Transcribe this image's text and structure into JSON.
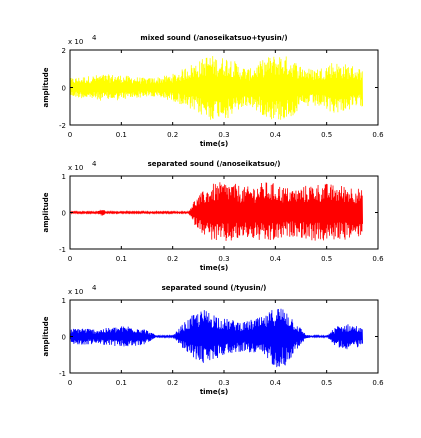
{
  "chart_data": [
    {
      "type": "line",
      "title": "mixed sound (/anoseikatsuo+tyusin/)",
      "xlabel": "time(s)",
      "ylabel": "amplitude",
      "y_multiplier": "x 10",
      "y_exponent": "4",
      "xlim": [
        0,
        0.6
      ],
      "ylim": [
        -2,
        2
      ],
      "xticks": [
        "0",
        "0.1",
        "0.2",
        "0.3",
        "0.4",
        "0.5",
        "0.6"
      ],
      "yticks": [
        "-2",
        "0",
        "2"
      ],
      "series": [
        {
          "color": "#ffff00",
          "x": [
            0,
            0.03,
            0.06,
            0.09,
            0.12,
            0.15,
            0.18,
            0.21,
            0.23,
            0.25,
            0.27,
            0.29,
            0.31,
            0.33,
            0.35,
            0.37,
            0.39,
            0.41,
            0.43,
            0.45,
            0.47,
            0.49,
            0.51,
            0.53,
            0.55,
            0.57
          ],
          "amp": [
            0.25,
            0.3,
            0.35,
            0.35,
            0.3,
            0.25,
            0.3,
            0.4,
            0.6,
            0.7,
            0.9,
            0.8,
            0.85,
            0.6,
            0.5,
            0.7,
            0.85,
            0.9,
            0.8,
            0.6,
            0.5,
            0.55,
            0.7,
            0.65,
            0.6,
            0.5
          ]
        }
      ]
    },
    {
      "type": "line",
      "title": "separated sound (/anoseikatsuo/)",
      "xlabel": "time(s)",
      "ylabel": "amplitude",
      "y_multiplier": "x 10",
      "y_exponent": "4",
      "xlim": [
        0,
        0.6
      ],
      "ylim": [
        -1,
        1
      ],
      "xticks": [
        "0",
        "0.1",
        "0.2",
        "0.3",
        "0.4",
        "0.5",
        "0.6"
      ],
      "yticks": [
        "-1",
        "0",
        "1"
      ],
      "series": [
        {
          "color": "#ff0000",
          "x": [
            0,
            0.05,
            0.06,
            0.065,
            0.07,
            0.1,
            0.2,
            0.23,
            0.24,
            0.26,
            0.28,
            0.3,
            0.32,
            0.34,
            0.36,
            0.38,
            0.4,
            0.42,
            0.44,
            0.46,
            0.48,
            0.5,
            0.52,
            0.54,
            0.56,
            0.57
          ],
          "amp": [
            0.02,
            0.02,
            0.08,
            0.1,
            0.02,
            0.02,
            0.02,
            0.02,
            0.3,
            0.6,
            0.8,
            0.85,
            0.8,
            0.7,
            0.75,
            0.85,
            0.8,
            0.7,
            0.65,
            0.75,
            0.8,
            0.8,
            0.75,
            0.75,
            0.7,
            0.6
          ]
        }
      ]
    },
    {
      "type": "line",
      "title": "separated sound (/tyusin/)",
      "xlabel": "time(s)",
      "ylabel": "amplitude",
      "y_multiplier": "x 10",
      "y_exponent": "4",
      "xlim": [
        0,
        0.6
      ],
      "ylim": [
        -1,
        1
      ],
      "xticks": [
        "0",
        "0.1",
        "0.2",
        "0.3",
        "0.4",
        "0.5",
        "0.6"
      ],
      "yticks": [
        "-1",
        "0",
        "1"
      ],
      "series": [
        {
          "color": "#0000ff",
          "x": [
            0,
            0.02,
            0.05,
            0.08,
            0.11,
            0.14,
            0.17,
            0.2,
            0.22,
            0.24,
            0.26,
            0.28,
            0.3,
            0.32,
            0.34,
            0.36,
            0.38,
            0.4,
            0.42,
            0.44,
            0.46,
            0.48,
            0.5,
            0.52,
            0.54,
            0.56,
            0.57
          ],
          "amp": [
            0.2,
            0.25,
            0.2,
            0.25,
            0.3,
            0.25,
            0.02,
            0.02,
            0.35,
            0.6,
            0.75,
            0.65,
            0.5,
            0.45,
            0.4,
            0.5,
            0.55,
            0.85,
            0.8,
            0.4,
            0.05,
            0.02,
            0.03,
            0.3,
            0.35,
            0.3,
            0.2
          ]
        }
      ]
    }
  ]
}
